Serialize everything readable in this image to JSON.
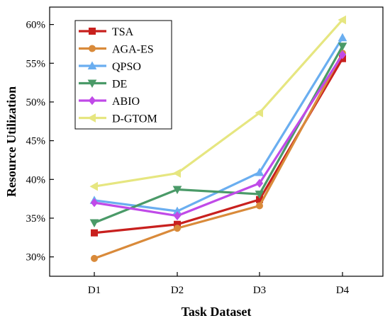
{
  "chart_data": {
    "type": "line",
    "title": "",
    "xlabel": "Task Dataset",
    "ylabel": "Resource Utilization",
    "categories": [
      "D1",
      "D2",
      "D3",
      "D4"
    ],
    "ylim": [
      0.275,
      0.6225
    ],
    "yticks": [
      0.3,
      0.35,
      0.4,
      0.45,
      0.5,
      0.55,
      0.6
    ],
    "ytick_labels": [
      "30%",
      "35%",
      "40%",
      "45%",
      "50%",
      "55%",
      "60%"
    ],
    "grid": false,
    "legend_position": "top-left",
    "series": [
      {
        "name": "TSA",
        "color": "#c8201e",
        "marker": "square",
        "values": [
          0.331,
          0.342,
          0.374,
          0.556
        ]
      },
      {
        "name": "AGA-ES",
        "color": "#d98a3a",
        "marker": "circle",
        "values": [
          0.298,
          0.337,
          0.366,
          0.563
        ]
      },
      {
        "name": "QPSO",
        "color": "#6aaef0",
        "marker": "triangle-up",
        "values": [
          0.373,
          0.359,
          0.409,
          0.583
        ]
      },
      {
        "name": "DE",
        "color": "#4a9a68",
        "marker": "triangle-down",
        "values": [
          0.344,
          0.387,
          0.381,
          0.572
        ]
      },
      {
        "name": "ABIO",
        "color": "#c04ae8",
        "marker": "diamond",
        "values": [
          0.37,
          0.353,
          0.395,
          0.561
        ]
      },
      {
        "name": "D-GTOM",
        "color": "#e6e680",
        "marker": "triangle-left",
        "values": [
          0.391,
          0.408,
          0.486,
          0.606
        ]
      }
    ]
  }
}
